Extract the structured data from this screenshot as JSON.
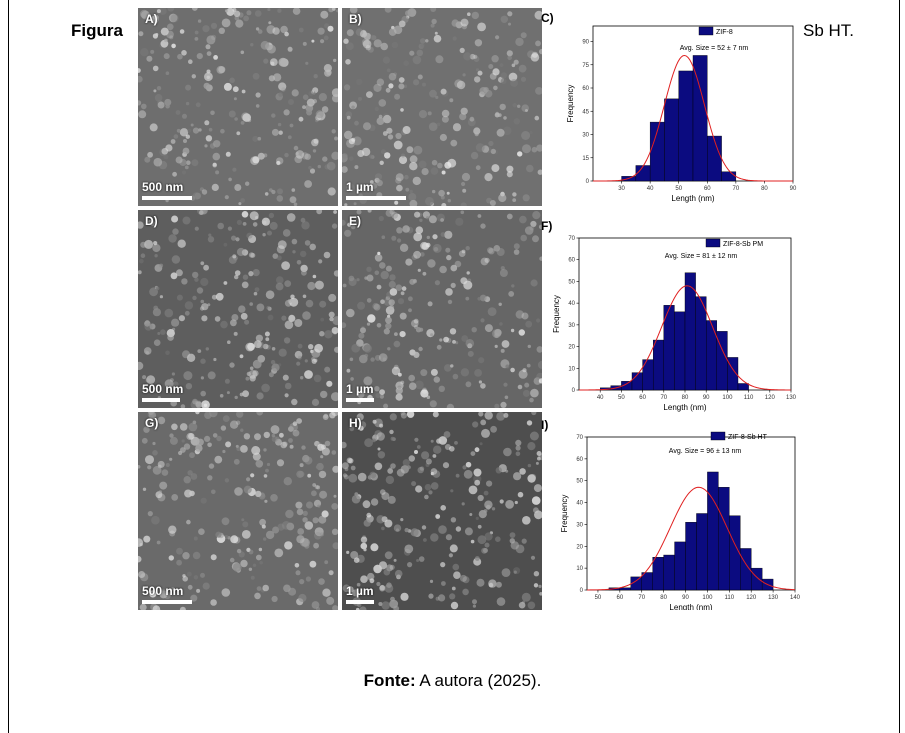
{
  "caption": {
    "left_text": "Figura",
    "right_text": "Sb HT."
  },
  "source": {
    "label": "Fonte:",
    "text": " A autora (2025)."
  },
  "sem_panels": [
    {
      "letter": "A)",
      "scale": "500 nm",
      "tone": "#6e6e6e"
    },
    {
      "letter": "B)",
      "scale": "1 µm",
      "tone": "#707070"
    },
    {
      "letter": "D)",
      "scale": "500 nm",
      "tone": "#5e5e5e"
    },
    {
      "letter": "E)",
      "scale": "1 µm",
      "tone": "#666666"
    },
    {
      "letter": "G)",
      "scale": "500 nm",
      "tone": "#6a6a6a"
    },
    {
      "letter": "H)",
      "scale": "1 µm",
      "tone": "#4e4e4e"
    }
  ],
  "colors": {
    "bar": "#0b0b80",
    "fit": "#e02020",
    "axis": "#000000"
  },
  "chart_data": [
    {
      "type": "bar",
      "panel": "C)",
      "legend": "ZIF-8",
      "annotation": "Avg. Size = 52 ± 7 nm",
      "xlabel": "Length (nm)",
      "ylabel": "Frequency",
      "xlim": [
        20,
        90
      ],
      "ylim": [
        0,
        100
      ],
      "xticks": [
        30,
        40,
        50,
        60,
        70,
        80,
        90
      ],
      "yticks": [
        0,
        15,
        30,
        45,
        60,
        75,
        90
      ],
      "bin_width": 5,
      "bins": [
        30,
        35,
        40,
        45,
        50,
        55,
        60,
        65
      ],
      "values": [
        3,
        10,
        38,
        53,
        71,
        81,
        29,
        6
      ],
      "fit": {
        "mean": 52,
        "sd": 7,
        "peak": 81
      }
    },
    {
      "type": "bar",
      "panel": "F)",
      "legend": "ZIF-8-Sb PM",
      "annotation": "Avg. Size = 81 ± 12 nm",
      "xlabel": "Length (nm)",
      "ylabel": "Frequency",
      "xlim": [
        30,
        130
      ],
      "ylim": [
        0,
        70
      ],
      "xticks": [
        40,
        50,
        60,
        70,
        80,
        90,
        100,
        110,
        120,
        130
      ],
      "yticks": [
        0,
        10,
        20,
        30,
        40,
        50,
        60,
        70
      ],
      "bin_width": 5,
      "bins": [
        40,
        45,
        50,
        55,
        60,
        65,
        70,
        75,
        80,
        85,
        90,
        95,
        100,
        105
      ],
      "values": [
        1,
        2,
        4,
        8,
        14,
        23,
        39,
        36,
        54,
        43,
        32,
        27,
        15,
        3
      ],
      "fit": {
        "mean": 81,
        "sd": 12,
        "peak": 48
      }
    },
    {
      "type": "bar",
      "panel": "I)",
      "legend": "ZIF-8-Sb HT",
      "annotation": "Avg. Size = 96 ± 13 nm",
      "xlabel": "Length (nm)",
      "ylabel": "Frequency",
      "xlim": [
        45,
        140
      ],
      "ylim": [
        0,
        70
      ],
      "xticks": [
        50,
        60,
        70,
        80,
        90,
        100,
        110,
        120,
        130,
        140
      ],
      "yticks": [
        0,
        10,
        20,
        30,
        40,
        50,
        60,
        70
      ],
      "bin_width": 5,
      "bins": [
        55,
        60,
        65,
        70,
        75,
        80,
        85,
        90,
        95,
        100,
        105,
        110,
        115,
        120,
        125
      ],
      "values": [
        1,
        1,
        6,
        8,
        15,
        16,
        22,
        31,
        35,
        54,
        47,
        34,
        19,
        10,
        5
      ],
      "fit": {
        "mean": 96,
        "sd": 13,
        "peak": 47
      }
    }
  ]
}
